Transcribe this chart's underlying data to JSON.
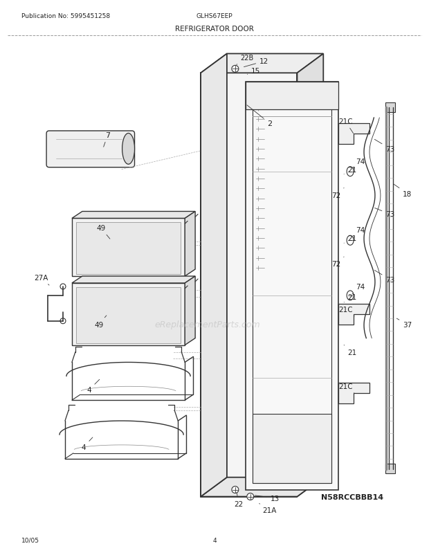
{
  "title_left": "Publication No: 5995451258",
  "title_center": "GLHS67EEP",
  "title_diagram": "REFRIGERATOR DOOR",
  "watermark": "eReplacementParts.com",
  "model_code": "N58RCCBBB14",
  "date": "10/05",
  "page": "4",
  "bg_color": "#ffffff",
  "line_color": "#333333",
  "text_color": "#222222"
}
